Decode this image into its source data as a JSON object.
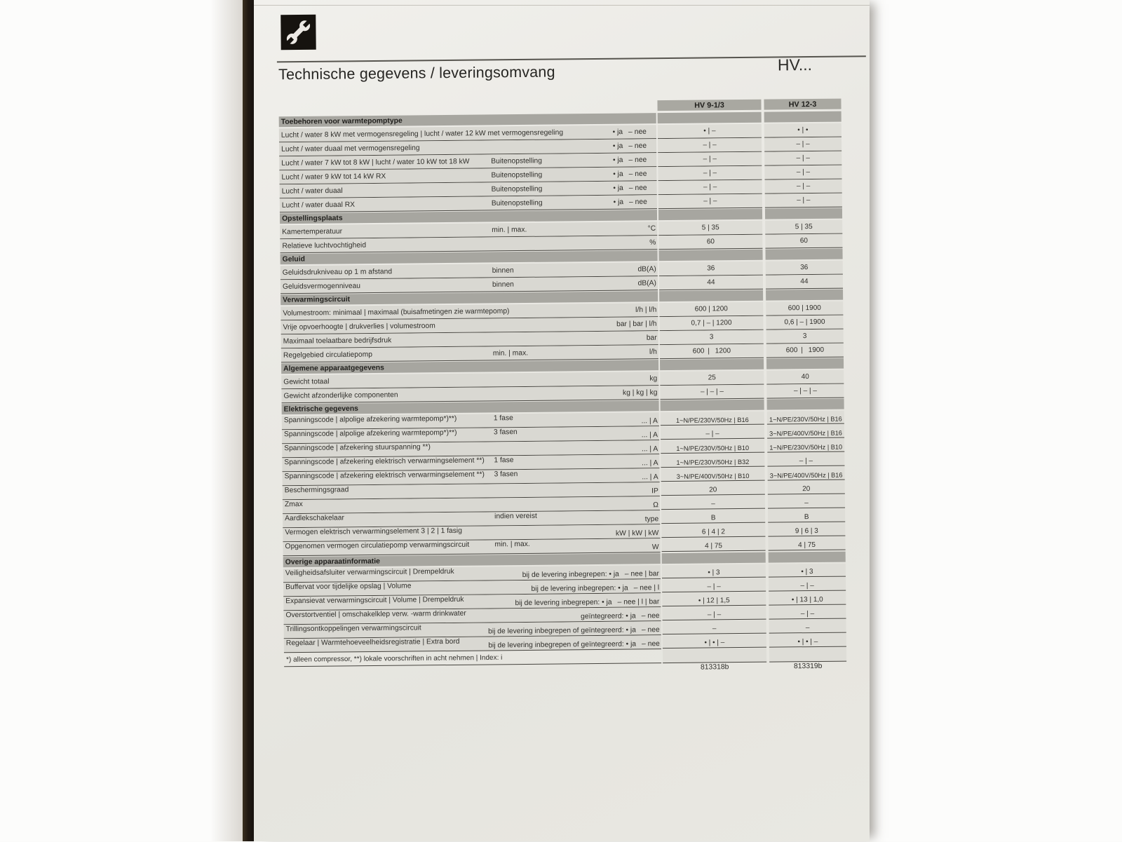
{
  "page": {
    "title": "Technische gegevens / leveringsomvang",
    "model_placeholder": "HV...",
    "header_icon": "wrench-icon"
  },
  "colors": {
    "paper": "#eae9e4",
    "section_bar": "#a7a6a0",
    "row_label_bg": "#d9d8d2",
    "value_cell_bg": "#deddd7",
    "rule": "#45433e",
    "icon_bg": "#16130f"
  },
  "table": {
    "columns": [
      "HV 9-1/3",
      "HV 12-3"
    ],
    "rows": [
      {
        "t": "sec",
        "label": "Toebehoren voor warmtepomptype"
      },
      {
        "t": "row",
        "label": "Lucht / water 8 kW met vermogensregeling | lucht / water 12 kW met vermogensregeling",
        "annot": "• ja  – nee",
        "v1": "• | –",
        "v2": "• | •"
      },
      {
        "t": "row",
        "label": "Lucht / water duaal met vermogensregeling",
        "annot": "• ja  – nee",
        "v1": "– | –",
        "v2": "– | –"
      },
      {
        "t": "row",
        "label": "Lucht / water 7 kW tot 8 kW | lucht / water 10 kW tot 18 kW",
        "desc": "Buitenopstelling",
        "annot": "• ja  – nee",
        "v1": "– | –",
        "v2": "– | –"
      },
      {
        "t": "row",
        "label": "Lucht / water 9 kW tot 14 kW RX",
        "desc": "Buitenopstelling",
        "annot": "• ja  – nee",
        "v1": "– | –",
        "v2": "– | –"
      },
      {
        "t": "row",
        "label": "Lucht / water duaal",
        "desc": "Buitenopstelling",
        "annot": "• ja  – nee",
        "v1": "– | –",
        "v2": "– | –"
      },
      {
        "t": "row",
        "label": "Lucht / water duaal RX",
        "desc": "Buitenopstelling",
        "annot": "• ja  – nee",
        "v1": "– | –",
        "v2": "– | –"
      },
      {
        "t": "sec",
        "label": "Opstellingsplaats"
      },
      {
        "t": "row",
        "label": "Kamertemperatuur",
        "desc": "min. | max.",
        "unit": "°C",
        "v1": "5 | 35",
        "v2": "5 | 35"
      },
      {
        "t": "row",
        "label": "Relatieve luchtvochtigheid",
        "unit": "%",
        "v1": "60",
        "v2": "60"
      },
      {
        "t": "sec",
        "label": "Geluid"
      },
      {
        "t": "row",
        "label": "Geluidsdrukniveau op 1 m afstand",
        "desc": "binnen",
        "unit": "dB(A)",
        "v1": "36",
        "v2": "36"
      },
      {
        "t": "row",
        "label": "Geluidsvermogenniveau",
        "desc": "binnen",
        "unit": "dB(A)",
        "v1": "44",
        "v2": "44"
      },
      {
        "t": "sec",
        "label": "Verwarmingscircuit"
      },
      {
        "t": "row",
        "label": "Volumestroom: minimaal | maximaal  (buisafmetingen zie warmtepomp)",
        "unit": "l/h | l/h",
        "v1": "600 | 1200",
        "v2": "600 | 1900"
      },
      {
        "t": "row",
        "label": "Vrije opvoerhoogte | drukverlies | volumestroom",
        "unit": "bar | bar | l/h",
        "v1": "0,7 | – | 1200",
        "v2": "0,6 | – | 1900"
      },
      {
        "t": "row",
        "label": "Maximaal toelaatbare bedrijfsdruk",
        "unit": "bar",
        "v1": "3",
        "v2": "3"
      },
      {
        "t": "row",
        "label": "Regelgebied circulatiepomp",
        "desc": "min. | max.",
        "unit": "l/h",
        "v1": "600 |  1200",
        "v2": "600 |  1900"
      },
      {
        "t": "sec",
        "label": "Algemene apparaatgegevens"
      },
      {
        "t": "row",
        "label": "Gewicht totaal",
        "unit": "kg",
        "v1": "25",
        "v2": "40"
      },
      {
        "t": "row",
        "label": "Gewicht afzonderlijke componenten",
        "unit": "kg | kg | kg",
        "v1": "– | – | –",
        "v2": "– | – | –"
      },
      {
        "t": "sec",
        "label": "Elektrische gegevens"
      },
      {
        "t": "row",
        "ub": 1,
        "label": "Spanningscode | alpolige afzekering warmtepomp*)**)",
        "desc": "1 fase",
        "unit": "... | A",
        "v1": "1~N/PE/230V/50Hz | B16",
        "v2": "1~N/PE/230V/50Hz | B16"
      },
      {
        "t": "row",
        "ub": 1,
        "label": "Spanningscode | alpolige afzekering warmtepomp*)**)",
        "desc": "3 fasen",
        "unit": "... | A",
        "v1": "– | –",
        "v2": "3~N/PE/400V/50Hz | B16"
      },
      {
        "t": "row",
        "ub": 1,
        "label": "Spanningscode | afzekering stuurspanning **)",
        "unit": "... | A",
        "v1": "1~N/PE/230V/50Hz | B10",
        "v2": "1~N/PE/230V/50Hz | B10"
      },
      {
        "t": "row",
        "ub": 1,
        "label": "Spanningscode | afzekering elektrisch verwarmingselement **)",
        "desc": "1 fase",
        "unit": "... | A",
        "v1": "1~N/PE/230V/50Hz | B32",
        "v2": "– | –"
      },
      {
        "t": "row",
        "ub": 1,
        "label": "Spanningscode | afzekering elektrisch verwarmingselement **)",
        "desc": "3 fasen",
        "unit": "... | A",
        "v1": "3~N/PE/400V/50Hz | B10",
        "v2": "3~N/PE/400V/50Hz | B16"
      },
      {
        "t": "row",
        "ub": 1,
        "label": "Beschermingsgraad",
        "unit": "IP",
        "v1": "20",
        "v2": "20"
      },
      {
        "t": "row",
        "ub": 1,
        "label": "Zmax",
        "unit": "Ω",
        "v1": "–",
        "v2": "–"
      },
      {
        "t": "row",
        "ub": 1,
        "label": "Aardlekschakelaar",
        "desc": "indien vereist",
        "unit": "type",
        "v1": "B",
        "v2": "B"
      },
      {
        "t": "row",
        "ub": 1,
        "label": "Vermogen elektrisch verwarmingselement 3 | 2 | 1 fasig",
        "unit": "kW | kW | kW",
        "v1": "6 | 4 | 2",
        "v2": "9 | 6 | 3"
      },
      {
        "t": "row",
        "ub": 1,
        "label": "Opgenomen vermogen circulatiepomp verwarmingscircuit",
        "desc": "min. | max.",
        "unit": "W",
        "v1": "4 | 75",
        "v2": "4 | 75"
      },
      {
        "t": "sec",
        "label": "Overige apparaatinformatie"
      },
      {
        "t": "row",
        "ub": 1,
        "label": "Veiligheidsafsluiter verwarmingscircuit | Drempeldruk",
        "annot": "bij de levering inbegrepen: • ja  – nee | bar",
        "v1": "• | 3",
        "v2": "• | 3"
      },
      {
        "t": "row",
        "ub": 1,
        "label": "Buffervat voor tijdelijke opslag | Volume",
        "annot": "bij de levering inbegrepen: • ja  – nee | l",
        "v1": "– | –",
        "v2": "– | –"
      },
      {
        "t": "row",
        "ub": 1,
        "label": "Expansievat verwarmingscircuit | Volume | Drempeldruk",
        "annot": "bij de levering inbegrepen: • ja  – nee | l | bar",
        "v1": "• | 12 | 1,5",
        "v2": "• | 13 | 1,0"
      },
      {
        "t": "row",
        "ub": 1,
        "label": "Overstortventiel | omschakelklep verw. -warm drinkwater",
        "annot": "geïntegreerd: • ja  – nee",
        "v1": "– | –",
        "v2": "– | –"
      },
      {
        "t": "row",
        "ub": 1,
        "label": "Trillingsontkoppelingen verwarmingscircuit",
        "annot": "bij de levering inbegrepen of geïntegreerd: • ja  – nee",
        "v1": "–",
        "v2": "–"
      },
      {
        "t": "row",
        "ub": 1,
        "label": "Regelaar | Warmtehoeveelheidsregistratie | Extra bord",
        "annot": "bij de levering inbegrepen of geïntegreerd: • ja  – nee",
        "v1": "• | • | –",
        "v2": "• | • | –"
      },
      {
        "t": "foot",
        "label": "*) alleen compressor, **) lokale voorschriften in acht nehmen  |  Index: i",
        "v1": "813318b",
        "v2": "813319b"
      }
    ]
  }
}
